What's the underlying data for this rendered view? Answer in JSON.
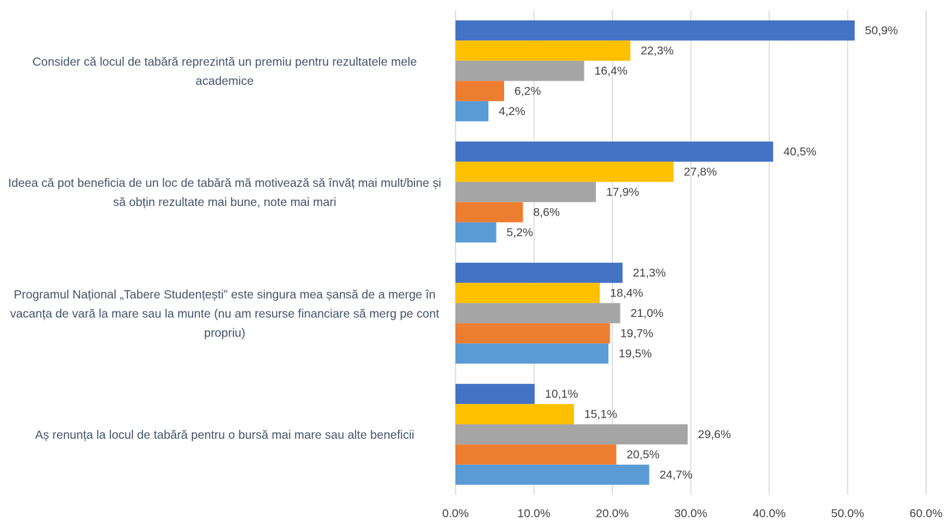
{
  "chart_data": {
    "type": "bar",
    "orientation": "horizontal",
    "categories": [
      "Consider că locul de tabără reprezintă un premiu pentru rezultatele mele academice",
      "Ideea că pot beneficia de un loc de tabără mă motivează să învăț mai mult/bine și să obțin rezultate mai bune, note mai mari",
      "Programul Național „Tabere Studențești” este singura mea șansă de a merge în vacanța de vară la mare sau la munte (nu am resurse financiare să merg pe cont propriu)",
      "Aș renunța la locul de tabără pentru o bursă mai mare sau alte beneficii"
    ],
    "series": [
      {
        "color": "#4472c4",
        "values": [
          50.9,
          40.5,
          21.3,
          10.1
        ],
        "value_labels": [
          "50,9%",
          "40,5%",
          "21,3%",
          "10,1%"
        ]
      },
      {
        "color": "#ffc000",
        "values": [
          22.3,
          27.8,
          18.4,
          15.1
        ],
        "value_labels": [
          "22,3%",
          "27,8%",
          "18,4%",
          "15,1%"
        ]
      },
      {
        "color": "#a5a5a5",
        "values": [
          16.4,
          17.9,
          21.0,
          29.6
        ],
        "value_labels": [
          "16,4%",
          "17,9%",
          "21,0%",
          "29,6%"
        ]
      },
      {
        "color": "#ed7d31",
        "values": [
          6.2,
          8.6,
          19.7,
          20.5
        ],
        "value_labels": [
          "6,2%",
          "8,6%",
          "19,7%",
          "20,5%"
        ]
      },
      {
        "color": "#5b9bd5",
        "values": [
          4.2,
          5.2,
          19.5,
          24.7
        ],
        "value_labels": [
          "4,2%",
          "5,2%",
          "19,5%",
          "24,7%"
        ]
      }
    ],
    "xlim": [
      0,
      60
    ],
    "xticks": [
      {
        "value": 0,
        "label": "0.0%"
      },
      {
        "value": 10,
        "label": "10.0%"
      },
      {
        "value": 20,
        "label": "20.0%"
      },
      {
        "value": 30,
        "label": "30.0%"
      },
      {
        "value": 40,
        "label": "40.0%"
      },
      {
        "value": 50,
        "label": "50.0%"
      },
      {
        "value": 60,
        "label": "60.0%"
      }
    ],
    "grid": true
  }
}
